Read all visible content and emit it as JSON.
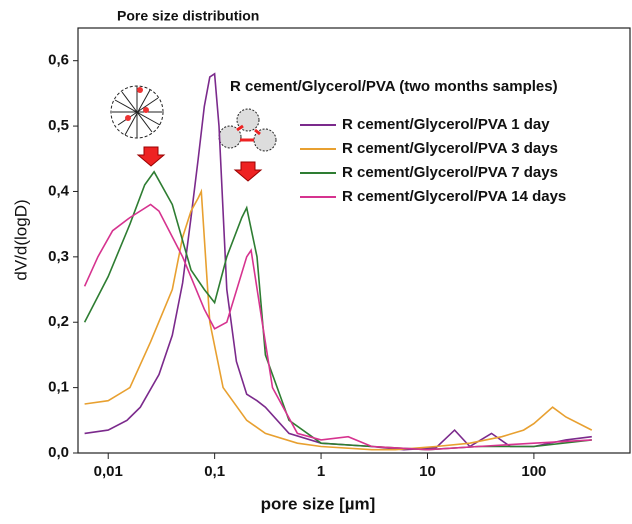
{
  "chart_data": {
    "type": "line",
    "title": "Pore size distribution",
    "x_label": "pore size [µm]",
    "y_label": "dV/d(logD)",
    "legend_title": "R cement/Glycerol/PVA (two months samples)",
    "xscale": "log",
    "xlim": [
      0.0052,
      800
    ],
    "ylim": [
      0,
      0.65
    ],
    "xticks": [
      {
        "value": 0.01,
        "label": "0,01"
      },
      {
        "value": 0.1,
        "label": "0,1"
      },
      1,
      10,
      100
    ],
    "yticks": [
      {
        "value": 0,
        "label": "0,0"
      },
      {
        "value": 0.1,
        "label": "0,1"
      },
      {
        "value": 0.2,
        "label": "0,2"
      },
      {
        "value": 0.3,
        "label": "0,3"
      },
      {
        "value": 0.4,
        "label": "0,4"
      },
      {
        "value": 0.5,
        "label": "0,5"
      },
      {
        "value": 0.6,
        "label": "0,6"
      }
    ],
    "series": [
      {
        "name": "R cement/Glycerol/PVA 1 day",
        "color": "#7b2a8c",
        "x": [
          0.006,
          0.01,
          0.015,
          0.02,
          0.03,
          0.04,
          0.05,
          0.06,
          0.07,
          0.08,
          0.09,
          0.1,
          0.11,
          0.13,
          0.16,
          0.2,
          0.25,
          0.3,
          0.5,
          1,
          3,
          6,
          12,
          18,
          25,
          40,
          60,
          100,
          200,
          350
        ],
        "values": [
          0.03,
          0.035,
          0.05,
          0.07,
          0.12,
          0.18,
          0.26,
          0.36,
          0.45,
          0.53,
          0.575,
          0.58,
          0.5,
          0.25,
          0.14,
          0.09,
          0.08,
          0.07,
          0.03,
          0.015,
          0.01,
          0.005,
          0.008,
          0.035,
          0.01,
          0.03,
          0.01,
          0.01,
          0.02,
          0.025
        ]
      },
      {
        "name": "R cement/Glycerol/PVA 3 days",
        "color": "#e8a030",
        "x": [
          0.006,
          0.01,
          0.016,
          0.025,
          0.04,
          0.05,
          0.06,
          0.07,
          0.075,
          0.09,
          0.12,
          0.2,
          0.3,
          0.6,
          1,
          3,
          5,
          12,
          25,
          50,
          80,
          100,
          150,
          200,
          350
        ],
        "values": [
          0.075,
          0.08,
          0.1,
          0.17,
          0.25,
          0.33,
          0.37,
          0.39,
          0.4,
          0.2,
          0.1,
          0.05,
          0.03,
          0.015,
          0.01,
          0.005,
          0.005,
          0.01,
          0.015,
          0.025,
          0.035,
          0.045,
          0.07,
          0.055,
          0.035
        ]
      },
      {
        "name": "R cement/Glycerol/PVA 7 days",
        "color": "#2e7d32",
        "x": [
          0.006,
          0.01,
          0.016,
          0.022,
          0.027,
          0.04,
          0.06,
          0.08,
          0.1,
          0.13,
          0.18,
          0.2,
          0.25,
          0.3,
          0.5,
          1,
          3,
          10,
          30,
          100,
          350
        ],
        "values": [
          0.2,
          0.27,
          0.35,
          0.41,
          0.43,
          0.38,
          0.28,
          0.25,
          0.23,
          0.3,
          0.36,
          0.375,
          0.3,
          0.15,
          0.05,
          0.015,
          0.01,
          0.005,
          0.01,
          0.01,
          0.02
        ]
      },
      {
        "name": "R cement/Glycerol/PVA 14 days",
        "color": "#d6338f",
        "x": [
          0.006,
          0.008,
          0.011,
          0.016,
          0.025,
          0.03,
          0.05,
          0.08,
          0.1,
          0.13,
          0.2,
          0.22,
          0.28,
          0.35,
          0.6,
          1,
          1.8,
          3,
          10,
          30,
          100,
          350
        ],
        "values": [
          0.255,
          0.3,
          0.34,
          0.36,
          0.38,
          0.37,
          0.3,
          0.22,
          0.19,
          0.2,
          0.3,
          0.31,
          0.2,
          0.1,
          0.03,
          0.02,
          0.025,
          0.01,
          0.005,
          0.01,
          0.015,
          0.02
        ]
      }
    ]
  }
}
